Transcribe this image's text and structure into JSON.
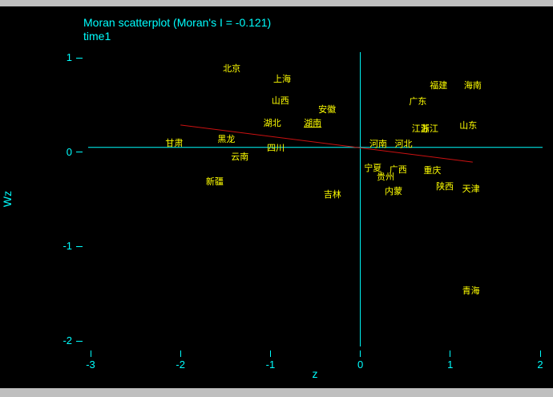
{
  "window": {
    "background": "#000000",
    "top_bar_color": "#bfbfbf",
    "bottom_bar_color": "#bfbfbf"
  },
  "colors": {
    "accent_cyan": "#00ffff",
    "label_yellow": "#ffff00",
    "trend_red": "#cc1111"
  },
  "chart_data": {
    "type": "scatter",
    "title": "Moran scatterplot (Moran's I = -0.121)",
    "subtitle": "time1",
    "xlabel": "z",
    "ylabel": "Wz",
    "moran_i": -0.121,
    "xlim": [
      -3,
      2
    ],
    "ylim": [
      -2,
      1
    ],
    "x_ticks": [
      -3,
      -2,
      -1,
      0,
      1,
      2
    ],
    "y_ticks": [
      1,
      0,
      -1,
      -2
    ],
    "grid": false,
    "legend": "none",
    "mean_line_wz": 0.05,
    "vertical_line_z": 0,
    "vline_wz_range": [
      -2.06,
      1.06
    ],
    "trend": {
      "slope": -0.121,
      "intercept": 0.045,
      "z_start": -2.0,
      "z_end": 1.25
    },
    "points": [
      {
        "label": "北京",
        "z": -1.43,
        "wz": 0.88
      },
      {
        "label": "上海",
        "z": -0.87,
        "wz": 0.77
      },
      {
        "label": "山西",
        "z": -0.89,
        "wz": 0.54
      },
      {
        "label": "安徽",
        "z": -0.37,
        "wz": 0.45
      },
      {
        "label": "湖北",
        "z": -0.98,
        "wz": 0.3
      },
      {
        "label": "湖南",
        "z": -0.53,
        "wz": 0.3,
        "underline": true
      },
      {
        "label": "福建",
        "z": 0.87,
        "wz": 0.7
      },
      {
        "label": "海南",
        "z": 1.25,
        "wz": 0.7
      },
      {
        "label": "广东",
        "z": 0.64,
        "wz": 0.53
      },
      {
        "label": "山东",
        "z": 1.2,
        "wz": 0.28
      },
      {
        "label": "江苏",
        "z": 0.67,
        "wz": 0.24
      },
      {
        "label": "浙江",
        "z": 0.77,
        "wz": 0.24
      },
      {
        "label": "甘肃",
        "z": -2.07,
        "wz": 0.09
      },
      {
        "label": "黑龙",
        "z": -1.49,
        "wz": 0.13
      },
      {
        "label": "四川",
        "z": -0.94,
        "wz": 0.04
      },
      {
        "label": "河南",
        "z": 0.2,
        "wz": 0.08
      },
      {
        "label": "河北",
        "z": 0.48,
        "wz": 0.08
      },
      {
        "label": "云南",
        "z": -1.34,
        "wz": -0.05
      },
      {
        "label": "宁夏",
        "z": 0.14,
        "wz": -0.17
      },
      {
        "label": "广西",
        "z": 0.42,
        "wz": -0.19
      },
      {
        "label": "贵州",
        "z": 0.28,
        "wz": -0.27
      },
      {
        "label": "重庆",
        "z": 0.8,
        "wz": -0.2
      },
      {
        "label": "新疆",
        "z": -1.62,
        "wz": -0.32
      },
      {
        "label": "内蒙",
        "z": 0.37,
        "wz": -0.42
      },
      {
        "label": "陕西",
        "z": 0.94,
        "wz": -0.37
      },
      {
        "label": "天津",
        "z": 1.23,
        "wz": -0.39
      },
      {
        "label": "吉林",
        "z": -0.31,
        "wz": -0.45
      },
      {
        "label": "青海",
        "z": 1.23,
        "wz": -1.47
      }
    ]
  }
}
